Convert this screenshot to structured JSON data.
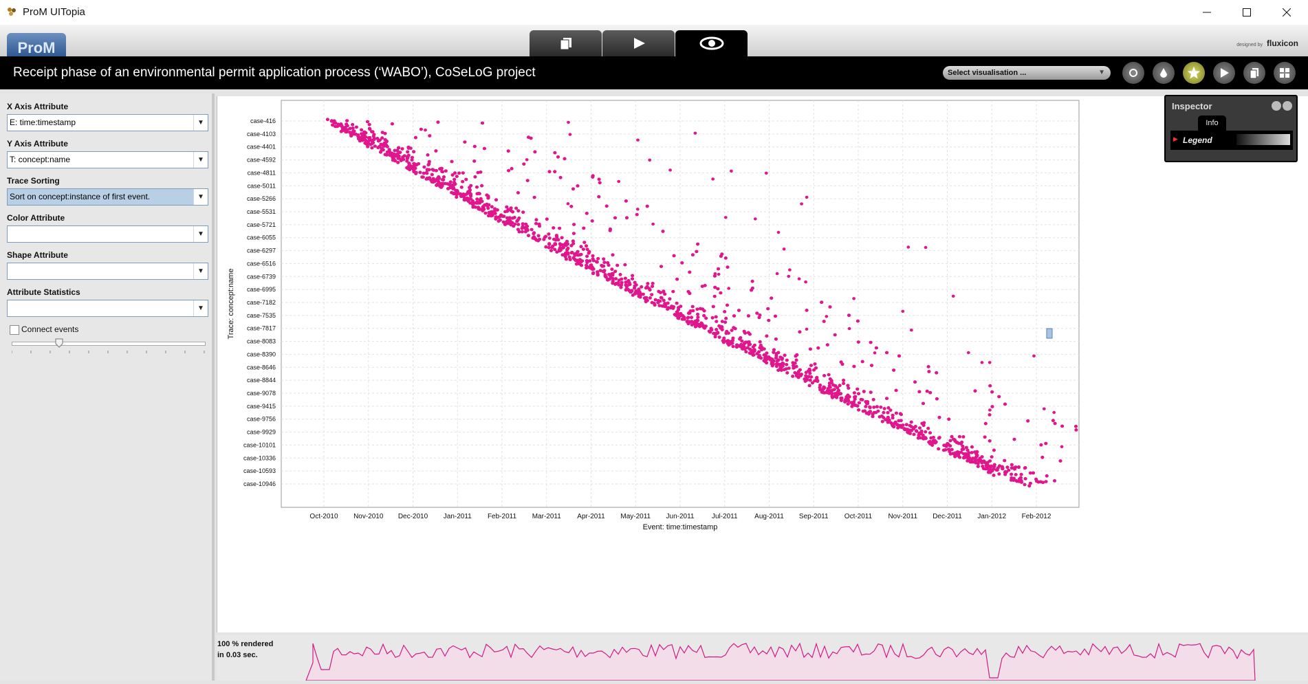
{
  "window": {
    "title": "ProM UITopia"
  },
  "ribbon": {
    "logo": "ProM",
    "designed_by": "designed by",
    "brand": "fluxicon"
  },
  "header": {
    "title": "Receipt phase of an environmental permit application process (‘WABO’), CoSeLoG project",
    "visualisation_select": "Select visualisation ..."
  },
  "sidebar": {
    "x_axis": {
      "label": "X Axis Attribute",
      "value": "E: time:timestamp"
    },
    "y_axis": {
      "label": "Y Axis Attribute",
      "value": "T: concept:name"
    },
    "trace_sorting": {
      "label": "Trace Sorting",
      "value": "Sort on concept:instance of first event."
    },
    "color_attr": {
      "label": "Color Attribute",
      "value": ""
    },
    "shape_attr": {
      "label": "Shape Attribute",
      "value": ""
    },
    "attr_stats": {
      "label": "Attribute Statistics",
      "value": ""
    },
    "connect_events": {
      "label": "Connect events",
      "checked": false
    }
  },
  "inspector": {
    "title": "Inspector",
    "tab": "Info",
    "legend": "Legend"
  },
  "status": {
    "line1": "100 % rendered",
    "line2": "in 0.03 sec."
  },
  "icons": {
    "tabs": [
      "copy-icon",
      "play-icon",
      "eye-icon"
    ],
    "header_buttons": [
      "refresh-icon",
      "drop-icon",
      "star-icon",
      "play-icon",
      "copy-icon",
      "grid-icon"
    ]
  },
  "colors": {
    "points": "#e0168c",
    "header": "#000000"
  },
  "chart_data": {
    "type": "scatter",
    "xlabel": "Event: time:timestamp",
    "ylabel": "Trace: concept:name",
    "x_ticks": [
      "Oct-2010",
      "Nov-2010",
      "Dec-2010",
      "Jan-2011",
      "Feb-2011",
      "Mar-2011",
      "Apr-2011",
      "May-2011",
      "Jun-2011",
      "Jul-2011",
      "Aug-2011",
      "Sep-2011",
      "Oct-2011",
      "Nov-2011",
      "Dec-2011",
      "Jan-2012",
      "Feb-2012"
    ],
    "y_ticks": [
      "case-416",
      "case-4103",
      "case-4401",
      "case-4592",
      "case-4811",
      "case-5011",
      "case-5266",
      "case-5531",
      "case-5721",
      "case-6055",
      "case-6297",
      "case-6516",
      "case-6739",
      "case-6995",
      "case-7182",
      "case-7535",
      "case-7817",
      "case-8083",
      "case-8390",
      "case-8646",
      "case-8844",
      "case-9078",
      "case-9415",
      "case-9756",
      "case-9929",
      "case-10101",
      "case-10336",
      "case-10593",
      "case-10946"
    ],
    "grid": true,
    "trend": {
      "start": [
        "Oct-2010",
        "case-416"
      ],
      "end": [
        "Feb-2012",
        "case-10946"
      ]
    },
    "color": "#e0168c"
  }
}
